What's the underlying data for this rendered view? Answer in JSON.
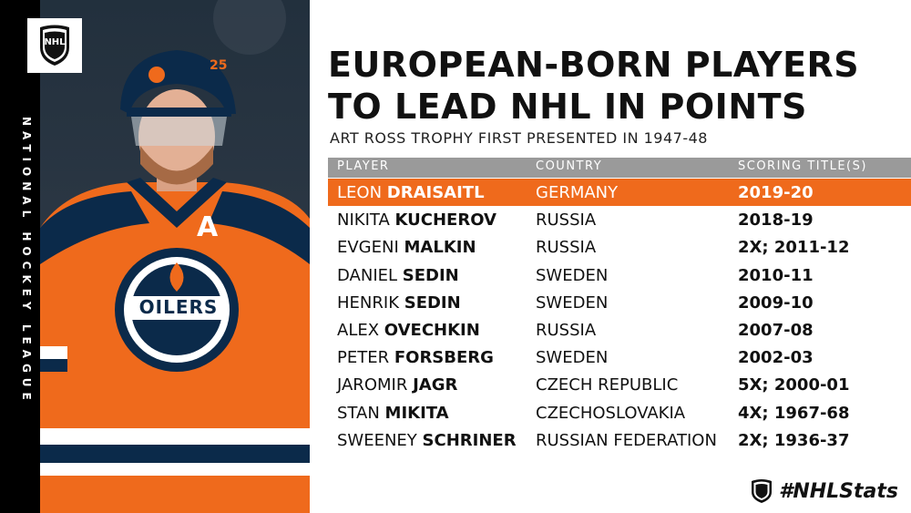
{
  "sidebar": {
    "vertical_text": "NATIONAL HOCKEY LEAGUE"
  },
  "logo": {
    "text": "NHL"
  },
  "photo": {
    "helmet_number": "25",
    "captain_letter": "A",
    "jersey_text": "OILERS"
  },
  "title": {
    "line1": "EUROPEAN-BORN PLAYERS",
    "line2": "TO LEAD NHL IN POINTS"
  },
  "subtitle": "ART ROSS TROPHY FIRST PRESENTED IN 1947-48",
  "table": {
    "headers": {
      "player": "PLAYER",
      "country": "COUNTRY",
      "score": "SCORING TITLE(S)"
    },
    "rows": [
      {
        "first": "LEON",
        "last": "DRAISAITL",
        "country": "GERMANY",
        "titles": "2019-20"
      },
      {
        "first": "NIKITA",
        "last": "KUCHEROV",
        "country": "RUSSIA",
        "titles": "2018-19"
      },
      {
        "first": "EVGENI",
        "last": "MALKIN",
        "country": "RUSSIA",
        "titles": "2X; 2011-12"
      },
      {
        "first": "DANIEL",
        "last": "SEDIN",
        "country": "SWEDEN",
        "titles": "2010-11"
      },
      {
        "first": "HENRIK",
        "last": "SEDIN",
        "country": "SWEDEN",
        "titles": "2009-10"
      },
      {
        "first": "ALEX",
        "last": "OVECHKIN",
        "country": "RUSSIA",
        "titles": "2007-08"
      },
      {
        "first": "PETER",
        "last": "FORSBERG",
        "country": "SWEDEN",
        "titles": "2002-03"
      },
      {
        "first": "JAROMIR",
        "last": "JAGR",
        "country": "CZECH REPUBLIC",
        "titles": "5X; 2000-01"
      },
      {
        "first": "STAN",
        "last": "MIKITA",
        "country": "CZECHOSLOVAKIA",
        "titles": "4X; 1967-68"
      },
      {
        "first": "SWEENEY",
        "last": "SCHRINER",
        "country": "RUSSIAN FEDERATION",
        "titles": "2X; 1936-37"
      }
    ]
  },
  "footer": {
    "hashtag": "#NHLStats",
    "logo_text": "NHL"
  },
  "colors": {
    "accent": "#ef6a1c",
    "header_bg": "#9a9a9a",
    "strip": "#000000",
    "navy": "#0b2a4a"
  }
}
